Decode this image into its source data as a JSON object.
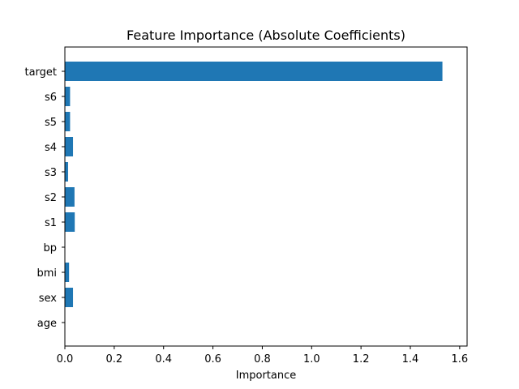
{
  "chart_data": {
    "type": "bar",
    "orientation": "horizontal",
    "title": "Feature Importance (Absolute Coefficients)",
    "xlabel": "Importance",
    "ylabel": "",
    "categories": [
      "age",
      "sex",
      "bmi",
      "bp",
      "s1",
      "s2",
      "s3",
      "s4",
      "s5",
      "s6",
      "target"
    ],
    "values": [
      0.0,
      0.033,
      0.017,
      0.0,
      0.04,
      0.039,
      0.013,
      0.033,
      0.021,
      0.021,
      1.53
    ],
    "xlim": [
      0,
      1.63
    ],
    "xticks": [
      "0.0",
      "0.2",
      "0.4",
      "0.6",
      "0.8",
      "1.0",
      "1.2",
      "1.4",
      "1.6"
    ],
    "grid": false,
    "bar_color": "#1f77b4"
  }
}
